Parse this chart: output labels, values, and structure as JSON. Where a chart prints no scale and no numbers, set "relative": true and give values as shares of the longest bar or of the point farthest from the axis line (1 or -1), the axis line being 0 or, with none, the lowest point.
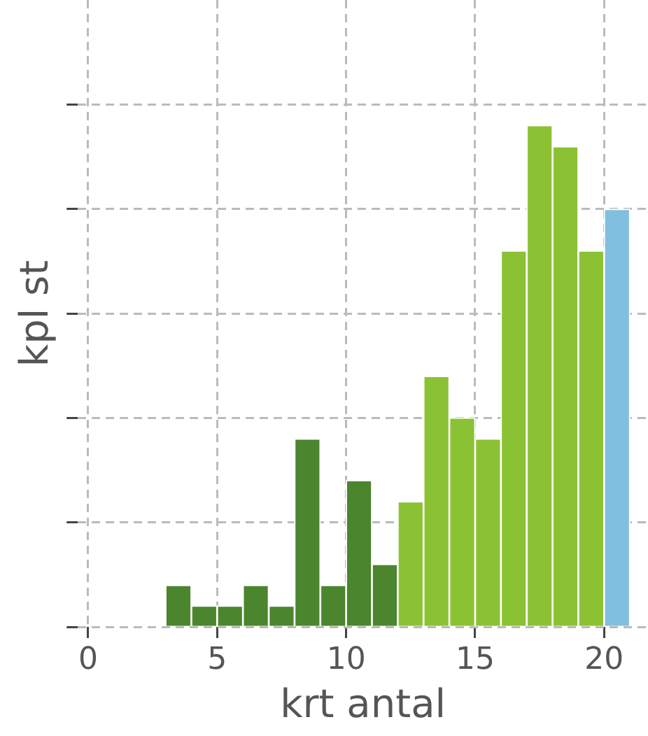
{
  "chart_data": {
    "type": "bar",
    "xlabel": "krt antal",
    "ylabel": "kpl st",
    "relative": true,
    "x": [
      3.5,
      4.5,
      5.5,
      6.5,
      7.5,
      8.5,
      9.5,
      10.5,
      11.5,
      12.5,
      13.5,
      14.5,
      15.5,
      16.5,
      17.5,
      18.5,
      19.5,
      20.5
    ],
    "values": [
      0.083,
      0.042,
      0.042,
      0.083,
      0.042,
      0.375,
      0.083,
      0.292,
      0.125,
      0.25,
      0.5,
      0.417,
      0.375,
      0.75,
      1,
      0.958,
      0.75,
      0.833
    ],
    "colors": [
      "#4b852d",
      "#4b852d",
      "#4b852d",
      "#4b852d",
      "#4b852d",
      "#4b852d",
      "#4b852d",
      "#4b852d",
      "#4b852d",
      "#8bc234",
      "#8bc234",
      "#8bc234",
      "#8bc234",
      "#8bc234",
      "#8bc234",
      "#8bc234",
      "#8bc234",
      "#80bfdf"
    ],
    "xlim": [
      -0.4,
      21.7
    ],
    "xticks": [
      0,
      5,
      10,
      15,
      20
    ],
    "grid": true
  }
}
